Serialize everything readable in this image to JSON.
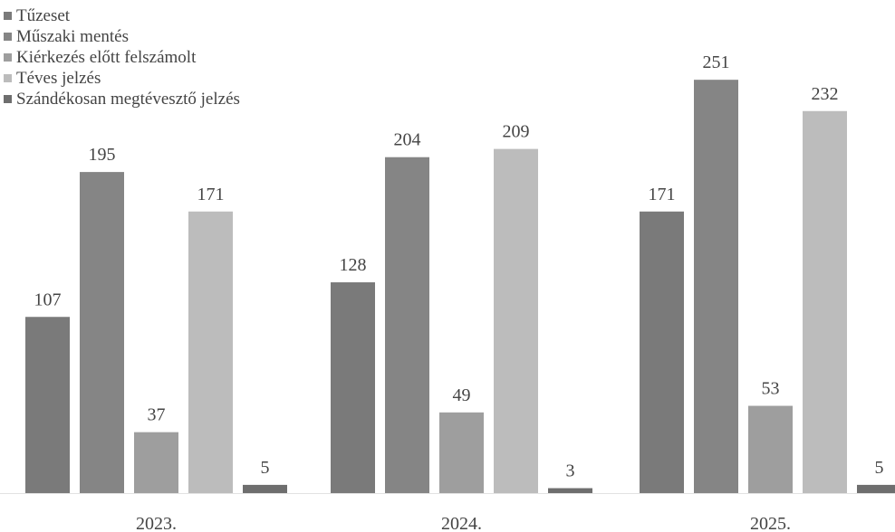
{
  "chart_data": {
    "type": "bar",
    "categories": [
      "2023.",
      "2024.",
      "2025."
    ],
    "series": [
      {
        "name": "Tűzeset",
        "values": [
          107,
          128,
          171
        ],
        "color": "#7a7a7a"
      },
      {
        "name": "Műszaki mentés",
        "values": [
          195,
          204,
          251
        ],
        "color": "#858585"
      },
      {
        "name": "Kiérkezés előtt felszámolt",
        "values": [
          37,
          49,
          53
        ],
        "color": "#9e9e9e"
      },
      {
        "name": "Téves jelzés",
        "values": [
          171,
          209,
          232
        ],
        "color": "#bcbcbc"
      },
      {
        "name": "Szándékosan megtévesztő jelzés",
        "values": [
          5,
          3,
          5
        ],
        "color": "#6e6e6e"
      }
    ],
    "title": "",
    "xlabel": "",
    "ylabel": "",
    "ylim": [
      0,
      260
    ],
    "legend_position": "top-left",
    "grid": false,
    "data_labels": true
  }
}
